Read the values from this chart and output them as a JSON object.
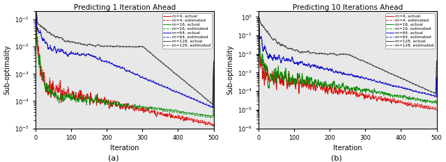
{
  "title_left": "Predicting 1 Iteration Ahead",
  "title_right": "Predicting 10 Iterations Ahead",
  "xlabel": "Iteration",
  "ylabel": "Sub-optimality",
  "label_a": "(a)",
  "label_b": "(b)",
  "xlim": [
    0,
    500
  ],
  "ylim_left": [
    1e-05,
    0.2
  ],
  "ylim_right": [
    1e-06,
    2.0
  ],
  "colors": {
    "m4": "#dd0000",
    "m16": "#008800",
    "m64": "#0000cc",
    "m128": "#404040"
  },
  "legend_labels": [
    "m=4, actual",
    "m=4, estimated",
    "m=16, actual",
    "m=16, estimated",
    "m=64, actual",
    "m=64, estimated",
    "m=128, actual",
    "m=128, estimated"
  ],
  "n_iter": 500,
  "bg_color": "#e8e8e8"
}
